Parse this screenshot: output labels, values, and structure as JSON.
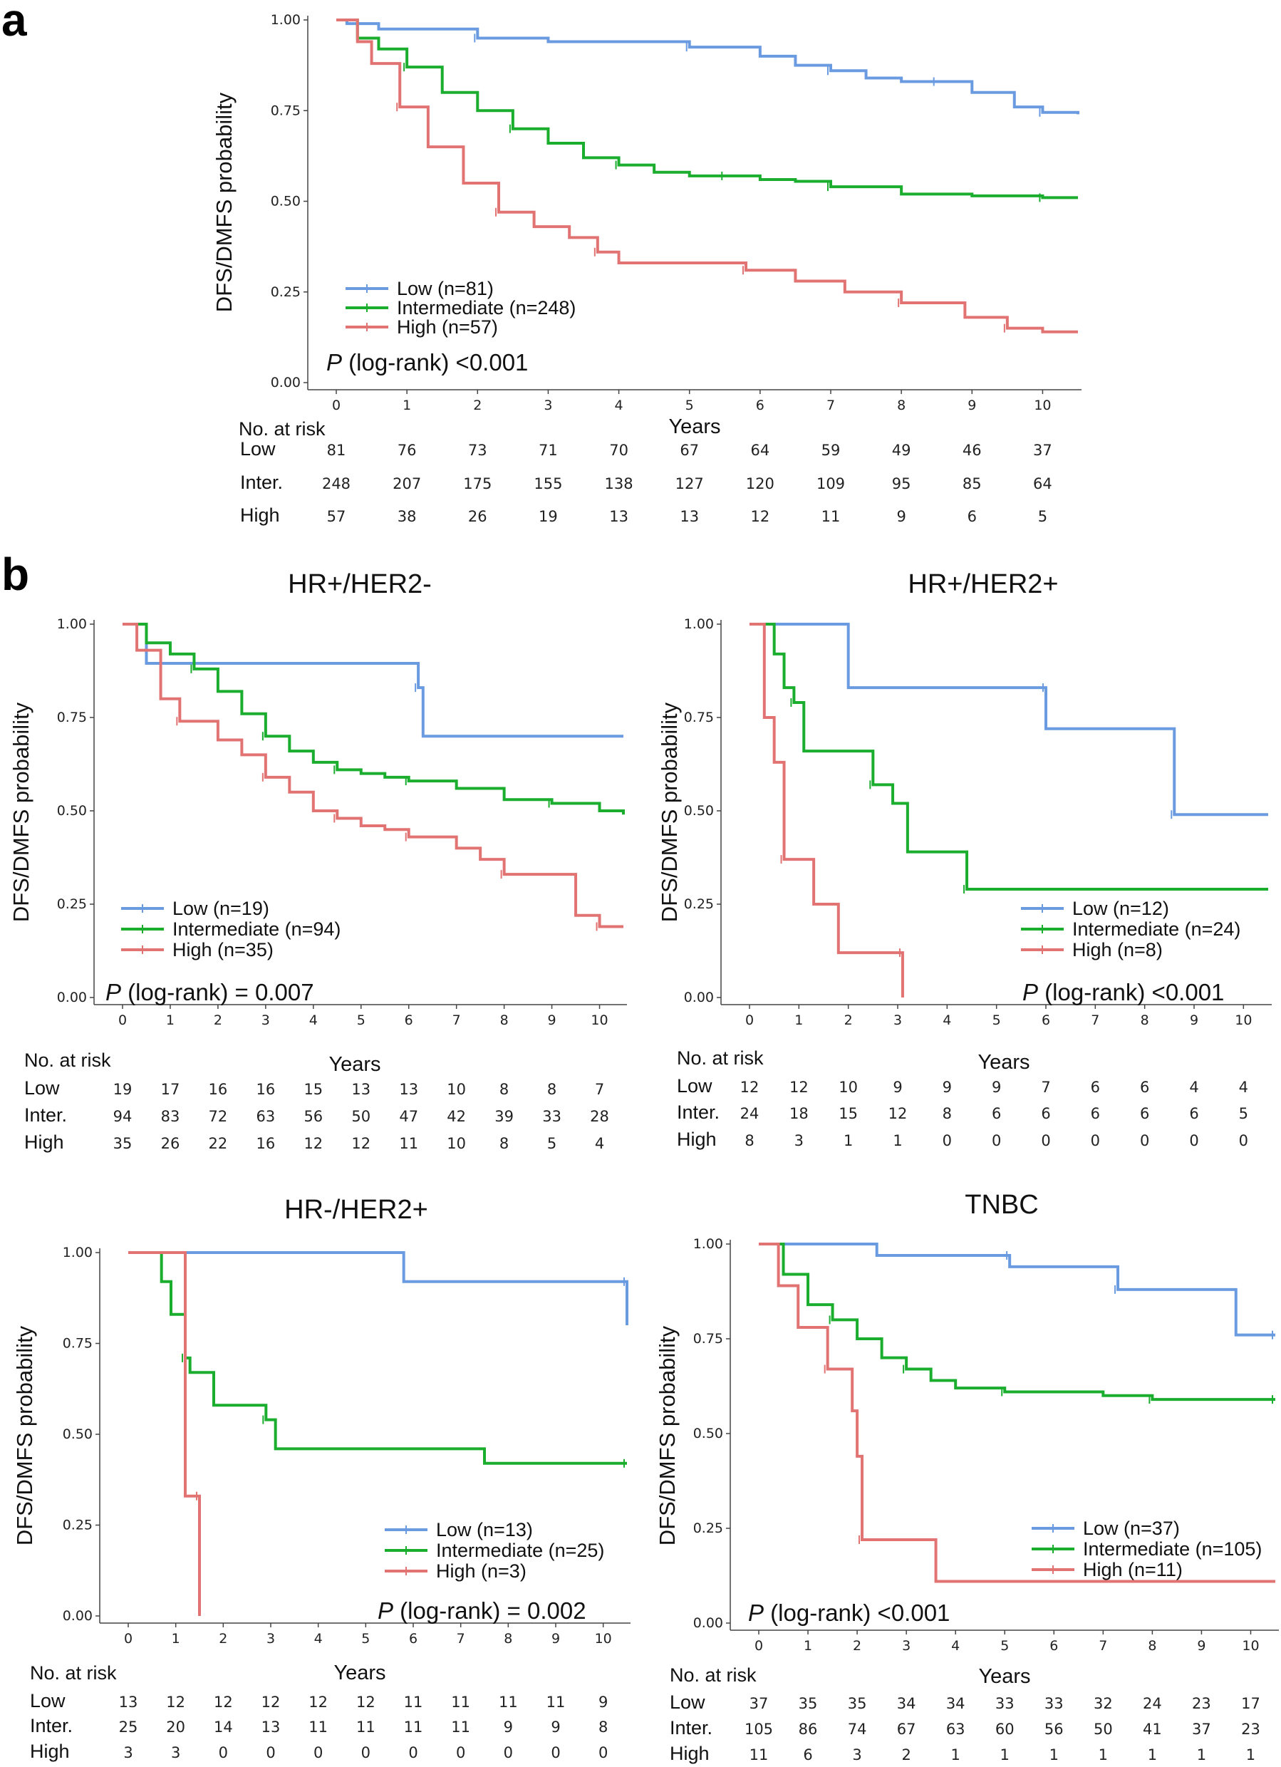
{
  "panel_labels": [
    "a",
    "b"
  ],
  "colors": {
    "low": "#6a9be0",
    "intermediate": "#1aad2e",
    "high": "#e27373",
    "axis": "#444444"
  },
  "chart_data": [
    {
      "type": "line",
      "id": "all",
      "title": "",
      "xlabel": "Years",
      "ylabel": "DFS/DMFS probability",
      "xlim": [
        0,
        10.5
      ],
      "ylim": [
        0,
        1
      ],
      "xticks": [
        0,
        1,
        2,
        3,
        4,
        5,
        6,
        7,
        8,
        9,
        10
      ],
      "yticks": [
        "0.00",
        "0.25",
        "0.50",
        "0.75",
        "1.00"
      ],
      "legend": [
        "Low (n=81)",
        "Intermediate (n=248)",
        "High (n=57)"
      ],
      "pvalue": {
        "p": "P",
        "rest": " (log-rank) <0.001"
      },
      "series": [
        {
          "name": "Low",
          "color": "low",
          "x": [
            0,
            0.15,
            0.6,
            2,
            3,
            4,
            5,
            6,
            6.5,
            7,
            7.5,
            8,
            8.5,
            9,
            9.6,
            10,
            10.5
          ],
          "y": [
            1,
            0.99,
            0.975,
            0.95,
            0.94,
            0.94,
            0.925,
            0.9,
            0.875,
            0.86,
            0.84,
            0.83,
            0.83,
            0.8,
            0.76,
            0.745,
            0.74
          ]
        },
        {
          "name": "Intermediate",
          "color": "intermediate",
          "x": [
            0,
            0.3,
            0.6,
            1,
            1.5,
            2,
            2.5,
            3,
            3.5,
            4,
            4.5,
            5,
            5.5,
            6,
            6.5,
            7,
            8,
            9,
            10,
            10.5
          ],
          "y": [
            1,
            0.95,
            0.92,
            0.87,
            0.8,
            0.75,
            0.7,
            0.66,
            0.62,
            0.6,
            0.58,
            0.57,
            0.57,
            0.56,
            0.555,
            0.54,
            0.52,
            0.515,
            0.51,
            0.51
          ]
        },
        {
          "name": "High",
          "color": "high",
          "x": [
            0,
            0.3,
            0.5,
            0.9,
            1.3,
            1.8,
            2.3,
            2.8,
            3.3,
            3.7,
            4,
            5,
            5.8,
            6.5,
            7.2,
            8,
            8.5,
            8.9,
            9.5,
            10,
            10.5
          ],
          "y": [
            1,
            0.94,
            0.88,
            0.76,
            0.65,
            0.55,
            0.47,
            0.43,
            0.4,
            0.36,
            0.33,
            0.33,
            0.31,
            0.28,
            0.25,
            0.22,
            0.22,
            0.18,
            0.15,
            0.14,
            0.14
          ]
        }
      ],
      "risk": {
        "header": "No. at risk",
        "rows": [
          {
            "label": "Low",
            "values": [
              "81",
              "76",
              "73",
              "71",
              "70",
              "67",
              "64",
              "59",
              "49",
              "46",
              "37"
            ]
          },
          {
            "label": "Inter.",
            "values": [
              "248",
              "207",
              "175",
              "155",
              "138",
              "127",
              "120",
              "109",
              "95",
              "85",
              "64"
            ]
          },
          {
            "label": "High",
            "values": [
              "57",
              "38",
              "26",
              "19",
              "13",
              "13",
              "12",
              "11",
              "9",
              "6",
              "5"
            ]
          }
        ]
      }
    },
    {
      "type": "line",
      "id": "hrpos_her2neg",
      "title": "HR+/HER2-",
      "xlabel": "Years",
      "ylabel": "DFS/DMFS probability",
      "xlim": [
        0,
        10.5
      ],
      "ylim": [
        0,
        1
      ],
      "xticks": [
        0,
        1,
        2,
        3,
        4,
        5,
        6,
        7,
        8,
        9,
        10
      ],
      "yticks": [
        "0.00",
        "0.25",
        "0.50",
        "0.75",
        "1.00"
      ],
      "legend": [
        "Low (n=19)",
        "Intermediate (n=94)",
        "High (n=35)"
      ],
      "pvalue": {
        "p": "P",
        "rest": " (log-rank) = 0.007"
      },
      "series": [
        {
          "name": "Low",
          "color": "low",
          "x": [
            0,
            0.5,
            4.5,
            6.2,
            6.3,
            10.5
          ],
          "y": [
            1,
            0.895,
            0.895,
            0.83,
            0.7,
            0.7
          ]
        },
        {
          "name": "Intermediate",
          "color": "intermediate",
          "x": [
            0,
            0.5,
            1,
            1.5,
            2,
            2.5,
            3,
            3.5,
            4,
            4.5,
            5,
            5.5,
            6,
            7,
            8,
            9,
            10,
            10.5
          ],
          "y": [
            1,
            0.95,
            0.92,
            0.88,
            0.82,
            0.76,
            0.7,
            0.66,
            0.63,
            0.61,
            0.6,
            0.59,
            0.58,
            0.56,
            0.53,
            0.52,
            0.5,
            0.49
          ]
        },
        {
          "name": "High",
          "color": "high",
          "x": [
            0,
            0.3,
            0.8,
            1.2,
            2,
            2.5,
            3,
            3.5,
            4,
            4.5,
            5,
            5.5,
            6,
            7,
            7.5,
            8,
            9,
            9.5,
            10,
            10.5
          ],
          "y": [
            1,
            0.93,
            0.8,
            0.74,
            0.69,
            0.65,
            0.59,
            0.55,
            0.5,
            0.48,
            0.46,
            0.45,
            0.43,
            0.4,
            0.37,
            0.33,
            0.33,
            0.22,
            0.19,
            0.19
          ]
        }
      ],
      "risk": {
        "header": "No. at risk",
        "rows": [
          {
            "label": "Low",
            "values": [
              "19",
              "17",
              "16",
              "16",
              "15",
              "13",
              "13",
              "10",
              "8",
              "8",
              "7"
            ]
          },
          {
            "label": "Inter.",
            "values": [
              "94",
              "83",
              "72",
              "63",
              "56",
              "50",
              "47",
              "42",
              "39",
              "33",
              "28"
            ]
          },
          {
            "label": "High",
            "values": [
              "35",
              "26",
              "22",
              "16",
              "12",
              "12",
              "11",
              "10",
              "8",
              "5",
              "4"
            ]
          }
        ]
      }
    },
    {
      "type": "line",
      "id": "hrpos_her2pos",
      "title": "HR+/HER2+",
      "xlabel": "Years",
      "ylabel": "DFS/DMFS probability",
      "xlim": [
        0,
        10.5
      ],
      "ylim": [
        0,
        1
      ],
      "xticks": [
        0,
        1,
        2,
        3,
        4,
        5,
        6,
        7,
        8,
        9,
        10
      ],
      "yticks": [
        "0.00",
        "0.25",
        "0.50",
        "0.75",
        "1.00"
      ],
      "legend": [
        "Low (n=12)",
        "Intermediate (n=24)",
        "High (n=8)"
      ],
      "pvalue": {
        "p": "P",
        "rest": " (log-rank) <0.001"
      },
      "series": [
        {
          "name": "Low",
          "color": "low",
          "x": [
            0,
            2,
            2,
            6,
            6,
            8.6,
            8.6,
            10.5
          ],
          "y": [
            1,
            1,
            0.83,
            0.83,
            0.72,
            0.72,
            0.49,
            0.49
          ]
        },
        {
          "name": "Intermediate",
          "color": "intermediate",
          "x": [
            0,
            0.5,
            0.7,
            0.9,
            1.1,
            2.2,
            2.5,
            2.9,
            3.2,
            4.4,
            10.5
          ],
          "y": [
            1,
            0.92,
            0.83,
            0.79,
            0.66,
            0.66,
            0.57,
            0.52,
            0.39,
            0.29,
            0.29
          ]
        },
        {
          "name": "High",
          "color": "high",
          "x": [
            0,
            0.3,
            0.5,
            0.7,
            1.3,
            1.8,
            3.1,
            3.1
          ],
          "y": [
            1,
            0.75,
            0.63,
            0.37,
            0.25,
            0.12,
            0.12,
            0
          ]
        }
      ],
      "risk": {
        "header": "No. at risk",
        "rows": [
          {
            "label": "Low",
            "values": [
              "12",
              "12",
              "10",
              "9",
              "9",
              "9",
              "7",
              "6",
              "6",
              "4",
              "4"
            ]
          },
          {
            "label": "Inter.",
            "values": [
              "24",
              "18",
              "15",
              "12",
              "8",
              "6",
              "6",
              "6",
              "6",
              "6",
              "5"
            ]
          },
          {
            "label": "High",
            "values": [
              "8",
              "3",
              "1",
              "1",
              "0",
              "0",
              "0",
              "0",
              "0",
              "0",
              "0"
            ]
          }
        ]
      }
    },
    {
      "type": "line",
      "id": "hrneg_her2pos",
      "title": "HR-/HER2+",
      "xlabel": "Years",
      "ylabel": "DFS/DMFS probability",
      "xlim": [
        0,
        10.5
      ],
      "ylim": [
        0,
        1
      ],
      "xticks": [
        0,
        1,
        2,
        3,
        4,
        5,
        6,
        7,
        8,
        9,
        10
      ],
      "yticks": [
        "0.00",
        "0.25",
        "0.50",
        "0.75",
        "1.00"
      ],
      "legend": [
        "Low (n=13)",
        "Intermediate (n=25)",
        "High (n=3)"
      ],
      "pvalue": {
        "p": "P",
        "rest": " (log-rank) = 0.002"
      },
      "series": [
        {
          "name": "Low",
          "color": "low",
          "x": [
            0,
            5.8,
            5.8,
            10.5,
            10.5
          ],
          "y": [
            1,
            1,
            0.92,
            0.92,
            0.8
          ]
        },
        {
          "name": "Intermediate",
          "color": "intermediate",
          "x": [
            0,
            0.7,
            0.9,
            1.2,
            1.3,
            1.8,
            2.9,
            3.1,
            7.5,
            10.5
          ],
          "y": [
            1,
            0.92,
            0.83,
            0.71,
            0.67,
            0.58,
            0.54,
            0.46,
            0.42,
            0.42
          ]
        },
        {
          "name": "High",
          "color": "high",
          "x": [
            0,
            1.2,
            1.2,
            1.5,
            1.5
          ],
          "y": [
            1,
            1,
            0.33,
            0.33,
            0
          ]
        }
      ],
      "risk": {
        "header": "No. at risk",
        "rows": [
          {
            "label": "Low",
            "values": [
              "13",
              "12",
              "12",
              "12",
              "12",
              "12",
              "11",
              "11",
              "11",
              "11",
              "9"
            ]
          },
          {
            "label": "Inter.",
            "values": [
              "25",
              "20",
              "14",
              "13",
              "11",
              "11",
              "11",
              "11",
              "9",
              "9",
              "8"
            ]
          },
          {
            "label": "High",
            "values": [
              "3",
              "3",
              "0",
              "0",
              "0",
              "0",
              "0",
              "0",
              "0",
              "0",
              "0"
            ]
          }
        ]
      }
    },
    {
      "type": "line",
      "id": "tnbc",
      "title": "TNBC",
      "xlabel": "Years",
      "ylabel": "DFS/DMFS probability",
      "xlim": [
        0,
        10.5
      ],
      "ylim": [
        0,
        1
      ],
      "xticks": [
        0,
        1,
        2,
        3,
        4,
        5,
        6,
        7,
        8,
        9,
        10
      ],
      "yticks": [
        "0.00",
        "0.25",
        "0.50",
        "0.75",
        "1.00"
      ],
      "legend": [
        "Low (n=37)",
        "Intermediate (n=105)",
        "High (n=11)"
      ],
      "pvalue": {
        "p": "P",
        "rest": " (log-rank) <0.001"
      },
      "series": [
        {
          "name": "Low",
          "color": "low",
          "x": [
            0,
            2.4,
            2.4,
            5.1,
            5.1,
            7.3,
            7.3,
            9.7,
            9.7,
            10.5
          ],
          "y": [
            1,
            1,
            0.97,
            0.97,
            0.94,
            0.94,
            0.88,
            0.88,
            0.76,
            0.76
          ]
        },
        {
          "name": "Intermediate",
          "color": "intermediate",
          "x": [
            0,
            0.5,
            1,
            1.5,
            2,
            2.5,
            3,
            3.5,
            4,
            5,
            6,
            7,
            8,
            9,
            10,
            10.5
          ],
          "y": [
            1,
            0.92,
            0.84,
            0.8,
            0.75,
            0.7,
            0.67,
            0.64,
            0.62,
            0.61,
            0.61,
            0.6,
            0.59,
            0.59,
            0.59,
            0.59
          ]
        },
        {
          "name": "High",
          "color": "high",
          "x": [
            0,
            0.4,
            0.8,
            1.4,
            1.9,
            2.0,
            2.1,
            3.6,
            10.5
          ],
          "y": [
            1,
            0.89,
            0.78,
            0.67,
            0.56,
            0.44,
            0.22,
            0.11,
            0.11
          ]
        }
      ],
      "risk": {
        "header": "No. at risk",
        "rows": [
          {
            "label": "Low",
            "values": [
              "37",
              "35",
              "35",
              "34",
              "34",
              "33",
              "33",
              "32",
              "24",
              "23",
              "17"
            ]
          },
          {
            "label": "Inter.",
            "values": [
              "105",
              "86",
              "74",
              "67",
              "63",
              "60",
              "56",
              "50",
              "41",
              "37",
              "23"
            ]
          },
          {
            "label": "High",
            "values": [
              "11",
              "6",
              "3",
              "2",
              "1",
              "1",
              "1",
              "1",
              "1",
              "1",
              "1"
            ]
          }
        ]
      }
    }
  ]
}
